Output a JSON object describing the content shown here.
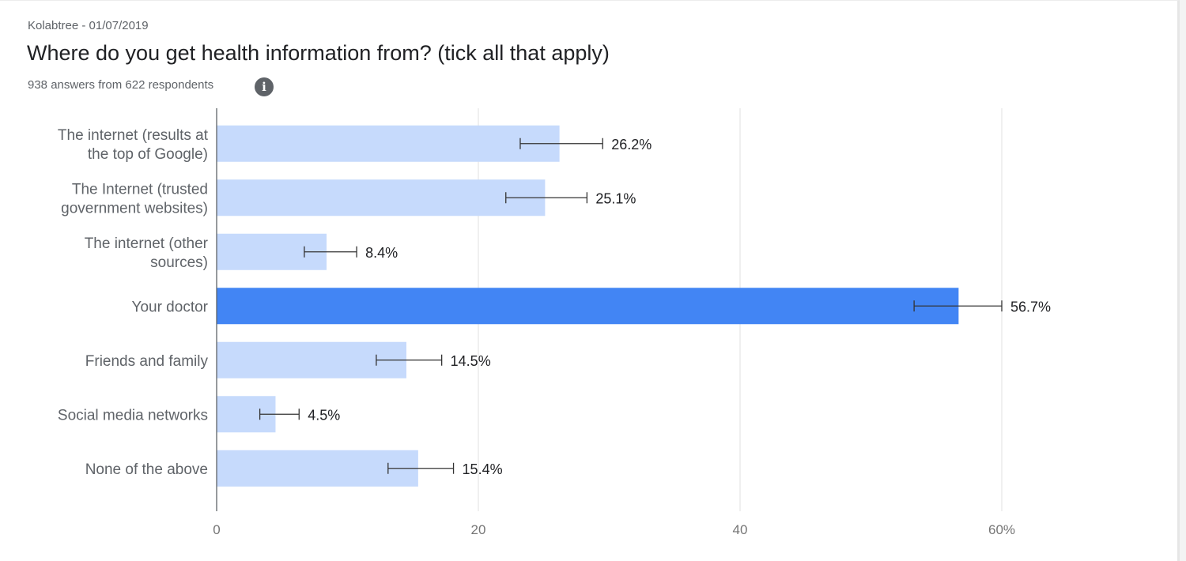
{
  "header": {
    "source": "Kolabtree - 01/07/2019",
    "title": "Where do you get health information from? (tick all that apply)",
    "subtitle": "938 answers from 622 respondents"
  },
  "colors": {
    "bar": "#c6dafc",
    "highlight_bar": "#4285f4",
    "gridline": "#e0e0e0",
    "axis": "#5f6368",
    "error_bar": "#333333"
  },
  "icons": {
    "info": "info-icon"
  },
  "chart_data": {
    "type": "bar",
    "orientation": "horizontal",
    "categories": [
      [
        "The internet (results at",
        "the top of Google)"
      ],
      [
        "The Internet (trusted",
        "government websites)"
      ],
      [
        "The internet (other",
        "sources)"
      ],
      [
        "Your doctor"
      ],
      [
        "Friends and family"
      ],
      [
        "Social media networks"
      ],
      [
        "None of the above"
      ]
    ],
    "values": [
      26.2,
      25.1,
      8.4,
      56.7,
      14.5,
      4.5,
      15.4
    ],
    "value_labels": [
      "26.2%",
      "25.1%",
      "8.4%",
      "56.7%",
      "14.5%",
      "4.5%",
      "15.4%"
    ],
    "error_low": [
      23.2,
      22.1,
      6.7,
      53.3,
      12.2,
      3.3,
      13.1
    ],
    "error_high": [
      29.5,
      28.3,
      10.7,
      60.0,
      17.2,
      6.3,
      18.1
    ],
    "highlight_index": 3,
    "xlim": [
      0,
      60
    ],
    "xticks": [
      0,
      20,
      40,
      60
    ],
    "xtick_labels": [
      "0",
      "20",
      "40",
      "60%"
    ],
    "grid": true
  }
}
